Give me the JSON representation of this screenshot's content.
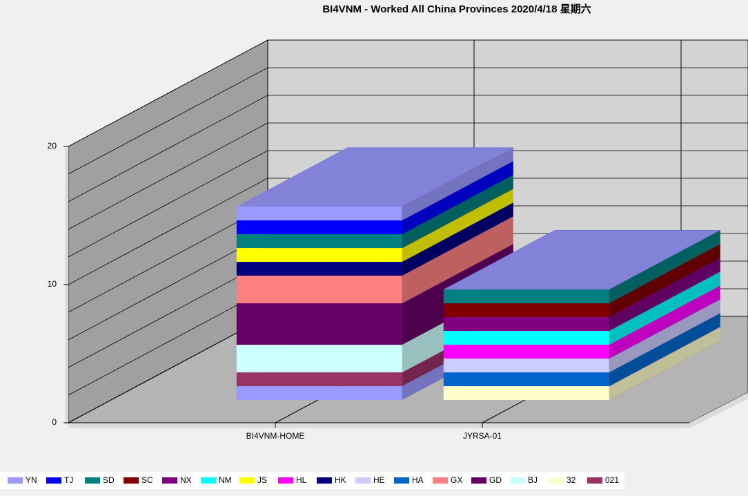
{
  "chart_data": {
    "type": "bar3d-stacked",
    "title": "BI4VNM - Worked All China Provinces 2020/4/18 星期六",
    "categories": [
      "BI4VNM-HOME",
      "JYRSA-01"
    ],
    "ylim": [
      0,
      20
    ],
    "yticks": [
      0,
      10,
      20
    ],
    "ygrid": [
      0,
      2,
      4,
      6,
      8,
      10,
      12,
      14,
      16,
      18,
      20
    ],
    "legend": "bottom",
    "series": [
      {
        "name": "YN",
        "color": "#9999ff",
        "values": [
          1,
          0
        ]
      },
      {
        "name": "TJ",
        "color": "#0000ff",
        "values": [
          1,
          0
        ]
      },
      {
        "name": "SD",
        "color": "#008080",
        "values": [
          1,
          1
        ]
      },
      {
        "name": "SC",
        "color": "#800000",
        "values": [
          0,
          1
        ]
      },
      {
        "name": "NX",
        "color": "#800080",
        "values": [
          0,
          1
        ]
      },
      {
        "name": "NM",
        "color": "#00ffff",
        "values": [
          0,
          1
        ]
      },
      {
        "name": "JS",
        "color": "#ffff00",
        "values": [
          1,
          0
        ]
      },
      {
        "name": "HL",
        "color": "#ff00ff",
        "values": [
          0,
          1
        ]
      },
      {
        "name": "HK",
        "color": "#000080",
        "values": [
          1,
          0
        ]
      },
      {
        "name": "HE",
        "color": "#ccccff",
        "values": [
          0,
          1
        ]
      },
      {
        "name": "HA",
        "color": "#0066cc",
        "values": [
          0,
          1
        ]
      },
      {
        "name": "GX",
        "color": "#ff8080",
        "values": [
          2,
          0
        ]
      },
      {
        "name": "GD",
        "color": "#660066",
        "values": [
          3,
          0
        ]
      },
      {
        "name": "BJ",
        "color": "#ccffff",
        "values": [
          2,
          0
        ]
      },
      {
        "name": "32",
        "color": "#ffffcc",
        "values": [
          0,
          1
        ]
      },
      {
        "name": "021",
        "color": "#993366",
        "values": [
          1,
          0
        ]
      },
      {
        "name": null,
        "color": "#9999ff",
        "values": [
          1,
          0
        ]
      }
    ]
  }
}
